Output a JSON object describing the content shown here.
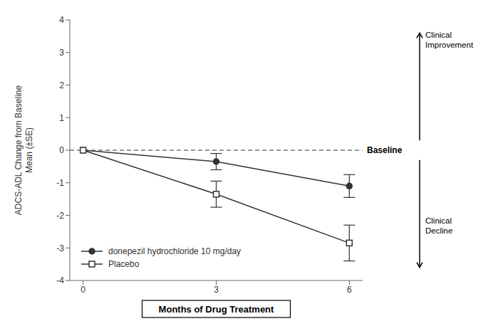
{
  "chart_data": {
    "type": "line",
    "x": [
      0,
      3,
      6
    ],
    "series": [
      {
        "name": "donepezil hydrochloride 10 mg/day",
        "color": "#333333",
        "marker": "circle",
        "line_style": "solid",
        "values": [
          0,
          -0.35,
          -1.1
        ],
        "error": [
          0,
          0.25,
          0.35
        ]
      },
      {
        "name": "Placebo",
        "color": "#333333",
        "marker": "square",
        "line_style": "solid",
        "values": [
          0,
          -1.35,
          -2.85
        ],
        "error": [
          0,
          0.4,
          0.55
        ]
      }
    ],
    "xlim": [
      -0.3,
      6.3
    ],
    "ylim": [
      -4,
      4
    ],
    "xticks": [
      0,
      3,
      6
    ],
    "yticks": [
      -4,
      -3,
      -2,
      -1,
      0,
      1,
      2,
      3,
      4
    ],
    "xlabel": "Months of Drug Treatment",
    "ylabel": "ADCS-ADL Change from Baseline\nMean (±SE)",
    "annotations": [
      {
        "text": "Baseline",
        "y": 0,
        "line_style": "dashed"
      },
      {
        "text": "Clinical\nImprovement",
        "arrow": "up"
      },
      {
        "text": "Clinical\nDecline",
        "arrow": "down"
      }
    ],
    "legend": "lower left",
    "grid": false
  }
}
